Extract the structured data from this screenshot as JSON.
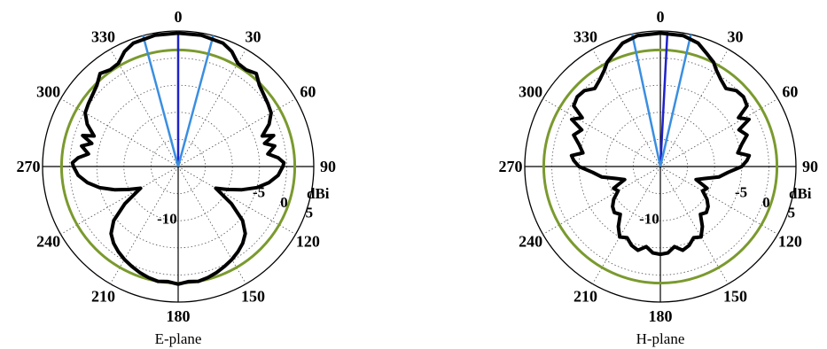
{
  "chart_data": [
    {
      "type": "polar",
      "title": "",
      "caption": "E-plane",
      "unit": "dBi",
      "radial_range": [
        -20,
        5
      ],
      "ring_labels": [
        "-10",
        "-5",
        "0",
        "5"
      ],
      "ring_values": [
        -10,
        -5,
        0,
        5
      ],
      "angle_labels": [
        "0",
        "30",
        "60",
        "90",
        "120",
        "150",
        "180",
        "210",
        "240",
        "270",
        "300",
        "330"
      ],
      "angle_values": [
        0,
        30,
        60,
        90,
        120,
        150,
        180,
        210,
        240,
        270,
        300,
        330
      ],
      "grid": true,
      "reference_circle": {
        "value": 1.5,
        "color": "#7a9a2e"
      },
      "beam_lines": [
        {
          "angle": 0,
          "color": "#1e22c8"
        },
        {
          "angle": 15,
          "color": "#3a8ee0"
        },
        {
          "angle": 345,
          "color": "#3a8ee0"
        }
      ],
      "pattern": {
        "color": "#000000",
        "points": [
          [
            0,
            4.6
          ],
          [
            10,
            4.6
          ],
          [
            20,
            4.2
          ],
          [
            25,
            3.4
          ],
          [
            30,
            2.0
          ],
          [
            35,
            1.8
          ],
          [
            40,
            2.4
          ],
          [
            45,
            1.2
          ],
          [
            50,
            0.6
          ],
          [
            55,
            0.2
          ],
          [
            60,
            -0.2
          ],
          [
            65,
            -1.5
          ],
          [
            70,
            -3.5
          ],
          [
            72,
            -1.5
          ],
          [
            75,
            -3.5
          ],
          [
            78,
            -1.8
          ],
          [
            82,
            -3.3
          ],
          [
            85,
            -1.5
          ],
          [
            88,
            -0.5
          ],
          [
            90,
            -0.7
          ],
          [
            95,
            -1.5
          ],
          [
            100,
            -3.0
          ],
          [
            105,
            -5.0
          ],
          [
            110,
            -7.5
          ],
          [
            115,
            -10.0
          ],
          [
            120,
            -12.0
          ],
          [
            125,
            -8.0
          ],
          [
            130,
            -4.5
          ],
          [
            135,
            -2.5
          ],
          [
            140,
            -1.5
          ],
          [
            145,
            -0.8
          ],
          [
            150,
            -0.2
          ],
          [
            155,
            0.3
          ],
          [
            160,
            0.8
          ],
          [
            165,
            1.2
          ],
          [
            170,
            1.5
          ],
          [
            175,
            1.3
          ],
          [
            180,
            1.7
          ],
          [
            185,
            1.3
          ],
          [
            190,
            1.5
          ],
          [
            195,
            1.2
          ],
          [
            200,
            0.8
          ],
          [
            205,
            0.3
          ],
          [
            210,
            -0.2
          ],
          [
            215,
            -0.8
          ],
          [
            220,
            -1.5
          ],
          [
            225,
            -2.5
          ],
          [
            230,
            -4.5
          ],
          [
            235,
            -8.0
          ],
          [
            240,
            -12.0
          ],
          [
            245,
            -10.0
          ],
          [
            250,
            -7.5
          ],
          [
            255,
            -5.0
          ],
          [
            260,
            -3.0
          ],
          [
            265,
            -1.5
          ],
          [
            270,
            -0.7
          ],
          [
            272,
            -0.5
          ],
          [
            275,
            -1.5
          ],
          [
            278,
            -3.3
          ],
          [
            282,
            -1.8
          ],
          [
            285,
            -3.5
          ],
          [
            288,
            -1.5
          ],
          [
            290,
            -3.5
          ],
          [
            295,
            -1.5
          ],
          [
            300,
            -0.2
          ],
          [
            305,
            0.2
          ],
          [
            310,
            0.6
          ],
          [
            315,
            1.2
          ],
          [
            320,
            2.4
          ],
          [
            325,
            1.8
          ],
          [
            330,
            2.0
          ],
          [
            335,
            3.4
          ],
          [
            340,
            4.2
          ],
          [
            350,
            4.6
          ]
        ]
      }
    },
    {
      "type": "polar",
      "title": "",
      "caption": "H-plane",
      "unit": "dBi",
      "radial_range": [
        -20,
        5
      ],
      "ring_labels": [
        "-10",
        "-5",
        "0",
        "5"
      ],
      "ring_values": [
        -10,
        -5,
        0,
        5
      ],
      "angle_labels": [
        "0",
        "30",
        "60",
        "90",
        "120",
        "150",
        "180",
        "210",
        "240",
        "270",
        "300",
        "330"
      ],
      "angle_values": [
        0,
        30,
        60,
        90,
        120,
        150,
        180,
        210,
        240,
        270,
        300,
        330
      ],
      "grid": true,
      "reference_circle": {
        "value": 1.5,
        "color": "#7a9a2e"
      },
      "beam_lines": [
        {
          "angle": 3,
          "color": "#1e22c8"
        },
        {
          "angle": 13,
          "color": "#3a8ee0"
        },
        {
          "angle": 348,
          "color": "#3a8ee0"
        }
      ],
      "pattern": {
        "color": "#000000",
        "points": [
          [
            0,
            4.6
          ],
          [
            10,
            4.5
          ],
          [
            17,
            3.8
          ],
          [
            22,
            2.6
          ],
          [
            27,
            1.6
          ],
          [
            30,
            0.6
          ],
          [
            35,
            -0.5
          ],
          [
            40,
            -1.2
          ],
          [
            45,
            -0.2
          ],
          [
            50,
            0.0
          ],
          [
            55,
            -0.5
          ],
          [
            58,
            -3.0
          ],
          [
            62,
            -1.5
          ],
          [
            65,
            -4.0
          ],
          [
            70,
            -3.0
          ],
          [
            75,
            -4.5
          ],
          [
            80,
            -5.5
          ],
          [
            83,
            -3.5
          ],
          [
            86,
            -4.0
          ],
          [
            90,
            -5.0
          ],
          [
            95,
            -7.5
          ],
          [
            100,
            -9.0
          ],
          [
            105,
            -11.5
          ],
          [
            110,
            -13.0
          ],
          [
            115,
            -10.5
          ],
          [
            120,
            -11.0
          ],
          [
            125,
            -9.5
          ],
          [
            130,
            -8.5
          ],
          [
            135,
            -8.0
          ],
          [
            140,
            -8.5
          ],
          [
            145,
            -6.5
          ],
          [
            150,
            -5.0
          ],
          [
            155,
            -5.5
          ],
          [
            160,
            -4.5
          ],
          [
            165,
            -4.0
          ],
          [
            170,
            -5.0
          ],
          [
            175,
            -4.0
          ],
          [
            180,
            -3.8
          ],
          [
            185,
            -4.0
          ],
          [
            190,
            -5.0
          ],
          [
            195,
            -4.0
          ],
          [
            200,
            -4.5
          ],
          [
            205,
            -5.5
          ],
          [
            210,
            -5.0
          ],
          [
            215,
            -6.5
          ],
          [
            220,
            -8.5
          ],
          [
            225,
            -8.0
          ],
          [
            230,
            -8.5
          ],
          [
            235,
            -9.5
          ],
          [
            240,
            -11.0
          ],
          [
            245,
            -10.5
          ],
          [
            250,
            -13.0
          ],
          [
            255,
            -11.5
          ],
          [
            260,
            -9.0
          ],
          [
            265,
            -7.5
          ],
          [
            270,
            -5.0
          ],
          [
            274,
            -4.0
          ],
          [
            277,
            -3.5
          ],
          [
            280,
            -5.5
          ],
          [
            285,
            -4.5
          ],
          [
            290,
            -3.0
          ],
          [
            295,
            -4.0
          ],
          [
            298,
            -1.5
          ],
          [
            302,
            -3.0
          ],
          [
            305,
            -0.5
          ],
          [
            310,
            0.0
          ],
          [
            315,
            -0.2
          ],
          [
            320,
            -1.2
          ],
          [
            325,
            -0.5
          ],
          [
            330,
            0.6
          ],
          [
            333,
            1.6
          ],
          [
            338,
            2.6
          ],
          [
            343,
            3.8
          ],
          [
            350,
            4.5
          ]
        ]
      }
    }
  ]
}
